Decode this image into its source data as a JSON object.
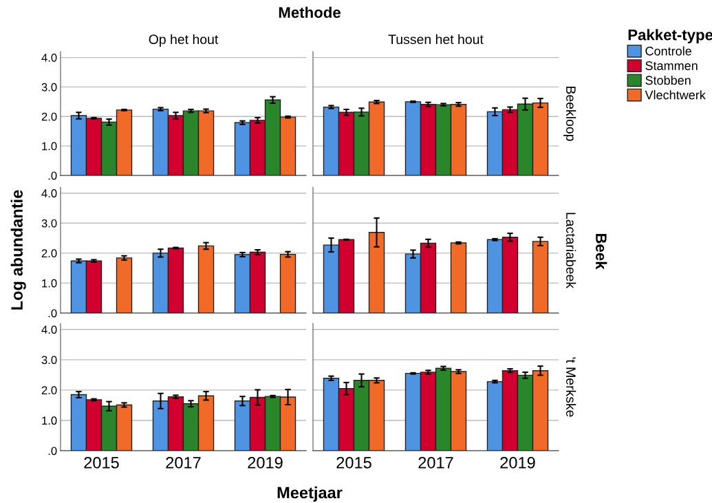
{
  "chart_data": [
    {
      "type": "bar",
      "title": "Op het hout",
      "annotations": [
        "Methode"
      ],
      "legend": "right",
      "legend_title": "Pakket-type",
      "categories": [
        "2015",
        "2017",
        "2019"
      ],
      "ylim": [
        0,
        4.2
      ],
      "yticks": [
        {
          "value": 0,
          "label": ".0"
        },
        {
          "value": 1,
          "label": "1.0"
        },
        {
          "value": 2,
          "label": "2.0"
        },
        {
          "value": 3,
          "label": "3.0"
        },
        {
          "value": 4,
          "label": "4.0"
        }
      ],
      "grid": "y",
      "tick_labels": "y",
      "series": [
        {
          "name": "Controle",
          "color": "#4f94e2",
          "values": [
            2.03,
            2.25,
            1.79
          ],
          "errors": [
            0.11,
            0.05,
            0.06
          ]
        },
        {
          "name": "Stammen",
          "color": "#d2002e",
          "values": [
            1.94,
            2.03,
            1.87
          ],
          "errors": [
            0.02,
            0.11,
            0.09
          ]
        },
        {
          "name": "Stobben",
          "color": "#2a862a",
          "values": [
            1.81,
            2.19,
            2.56
          ],
          "errors": [
            0.1,
            0.05,
            0.11
          ]
        },
        {
          "name": "Vlechtwerk",
          "color": "#f26a28",
          "values": [
            2.22,
            2.19,
            1.98
          ],
          "errors": [
            0.02,
            0.06,
            0.03
          ]
        }
      ]
    },
    {
      "type": "bar",
      "title": "Tussen het hout",
      "y2label": "Beekloop",
      "categories": [
        "2015",
        "2017",
        "2019"
      ],
      "ylim": [
        0,
        4.2
      ],
      "yticks": [
        {
          "value": 0,
          "label": null
        },
        {
          "value": 1,
          "label": null
        },
        {
          "value": 2,
          "label": null
        },
        {
          "value": 3,
          "label": null
        },
        {
          "value": 4,
          "label": null
        }
      ],
      "grid": "y",
      "tick_labels": false,
      "series": [
        {
          "color": "#4f94e2",
          "values": [
            2.32,
            2.5,
            2.16
          ],
          "errors": [
            0.05,
            0.02,
            0.13
          ]
        },
        {
          "color": "#d2002e",
          "values": [
            2.14,
            2.41,
            2.23
          ],
          "errors": [
            0.1,
            0.07,
            0.09
          ]
        },
        {
          "color": "#2a862a",
          "values": [
            2.15,
            2.4,
            2.42
          ],
          "errors": [
            0.13,
            0.04,
            0.2
          ]
        },
        {
          "color": "#f26a28",
          "values": [
            2.49,
            2.41,
            2.46
          ],
          "errors": [
            0.05,
            0.06,
            0.15
          ]
        }
      ]
    },
    {
      "type": "bar",
      "ylabel": "Log abundantie",
      "categories": [
        "2015",
        "2017",
        "2019"
      ],
      "ylim": [
        0,
        4.2
      ],
      "yticks": [
        {
          "value": 0,
          "label": ".0"
        },
        {
          "value": 1,
          "label": "1.0"
        },
        {
          "value": 2,
          "label": "2.0"
        },
        {
          "value": 3,
          "label": "3.0"
        },
        {
          "value": 4,
          "label": "4.0"
        }
      ],
      "grid": "y",
      "tick_labels": "y",
      "series": [
        {
          "color": "#4f94e2",
          "values": [
            1.74,
            2.0,
            1.95
          ],
          "errors": [
            0.06,
            0.13,
            0.07
          ]
        },
        {
          "color": "#d2002e",
          "values": [
            1.74,
            2.17,
            2.03
          ],
          "errors": [
            0.04,
            0.02,
            0.08
          ]
        },
        {
          "values": [
            null,
            null,
            null
          ]
        },
        {
          "color": "#f26a28",
          "values": [
            1.84,
            2.24,
            1.96
          ],
          "errors": [
            0.07,
            0.11,
            0.09
          ]
        }
      ]
    },
    {
      "type": "bar",
      "y2label": "Lactariabeek",
      "annotations": [
        "Beek"
      ],
      "categories": [
        "2015",
        "2017",
        "2019"
      ],
      "ylim": [
        0,
        4.2
      ],
      "yticks": [
        {
          "value": 0,
          "label": null
        },
        {
          "value": 1,
          "label": null
        },
        {
          "value": 2,
          "label": null
        },
        {
          "value": 3,
          "label": null
        },
        {
          "value": 4,
          "label": null
        }
      ],
      "grid": "y",
      "tick_labels": false,
      "series": [
        {
          "color": "#4f94e2",
          "values": [
            2.27,
            1.97,
            2.45
          ],
          "errors": [
            0.23,
            0.13,
            0.03
          ]
        },
        {
          "color": "#d2002e",
          "values": [
            2.45,
            2.33,
            2.53
          ],
          "errors": [
            0.01,
            0.13,
            0.13
          ]
        },
        {
          "values": [
            null,
            null,
            null
          ]
        },
        {
          "color": "#f26a28",
          "values": [
            2.69,
            2.34,
            2.39
          ],
          "errors": [
            0.48,
            0.03,
            0.14
          ]
        }
      ]
    },
    {
      "type": "bar",
      "xlabel": "Meetjaar",
      "categories": [
        "2015",
        "2017",
        "2019"
      ],
      "ylim": [
        0,
        4.2
      ],
      "yticks": [
        {
          "value": 0,
          "label": ".0"
        },
        {
          "value": 1,
          "label": "1.0"
        },
        {
          "value": 2,
          "label": "2.0"
        },
        {
          "value": 3,
          "label": "3.0"
        },
        {
          "value": 4,
          "label": "4.0"
        }
      ],
      "grid": "y",
      "series": [
        {
          "color": "#4f94e2",
          "values": [
            1.85,
            1.64,
            1.64
          ],
          "errors": [
            0.1,
            0.25,
            0.15
          ]
        },
        {
          "color": "#d2002e",
          "values": [
            1.68,
            1.78,
            1.76
          ],
          "errors": [
            0.03,
            0.05,
            0.25
          ]
        },
        {
          "color": "#2a862a",
          "values": [
            1.47,
            1.55,
            1.79
          ],
          "errors": [
            0.15,
            0.1,
            0.03
          ]
        },
        {
          "color": "#f26a28",
          "values": [
            1.51,
            1.81,
            1.77
          ],
          "errors": [
            0.07,
            0.14,
            0.25
          ]
        }
      ]
    },
    {
      "type": "bar",
      "y2label": "'t Merkske",
      "categories": [
        "2015",
        "2017",
        "2019"
      ],
      "ylim": [
        0,
        4.2
      ],
      "yticks": [
        {
          "value": 0,
          "label": null
        },
        {
          "value": 1,
          "label": null
        },
        {
          "value": 2,
          "label": null
        },
        {
          "value": 3,
          "label": null
        },
        {
          "value": 4,
          "label": null
        }
      ],
      "grid": "y",
      "tick_labels": "x",
      "series": [
        {
          "color": "#4f94e2",
          "values": [
            2.39,
            2.55,
            2.28
          ],
          "errors": [
            0.07,
            0.02,
            0.04
          ]
        },
        {
          "color": "#d2002e",
          "values": [
            2.05,
            2.59,
            2.64
          ],
          "errors": [
            0.2,
            0.06,
            0.06
          ]
        },
        {
          "color": "#2a862a",
          "values": [
            2.32,
            2.72,
            2.49
          ],
          "errors": [
            0.21,
            0.06,
            0.1
          ]
        },
        {
          "color": "#f26a28",
          "values": [
            2.32,
            2.61,
            2.64
          ],
          "errors": [
            0.08,
            0.06,
            0.15
          ]
        }
      ]
    }
  ]
}
